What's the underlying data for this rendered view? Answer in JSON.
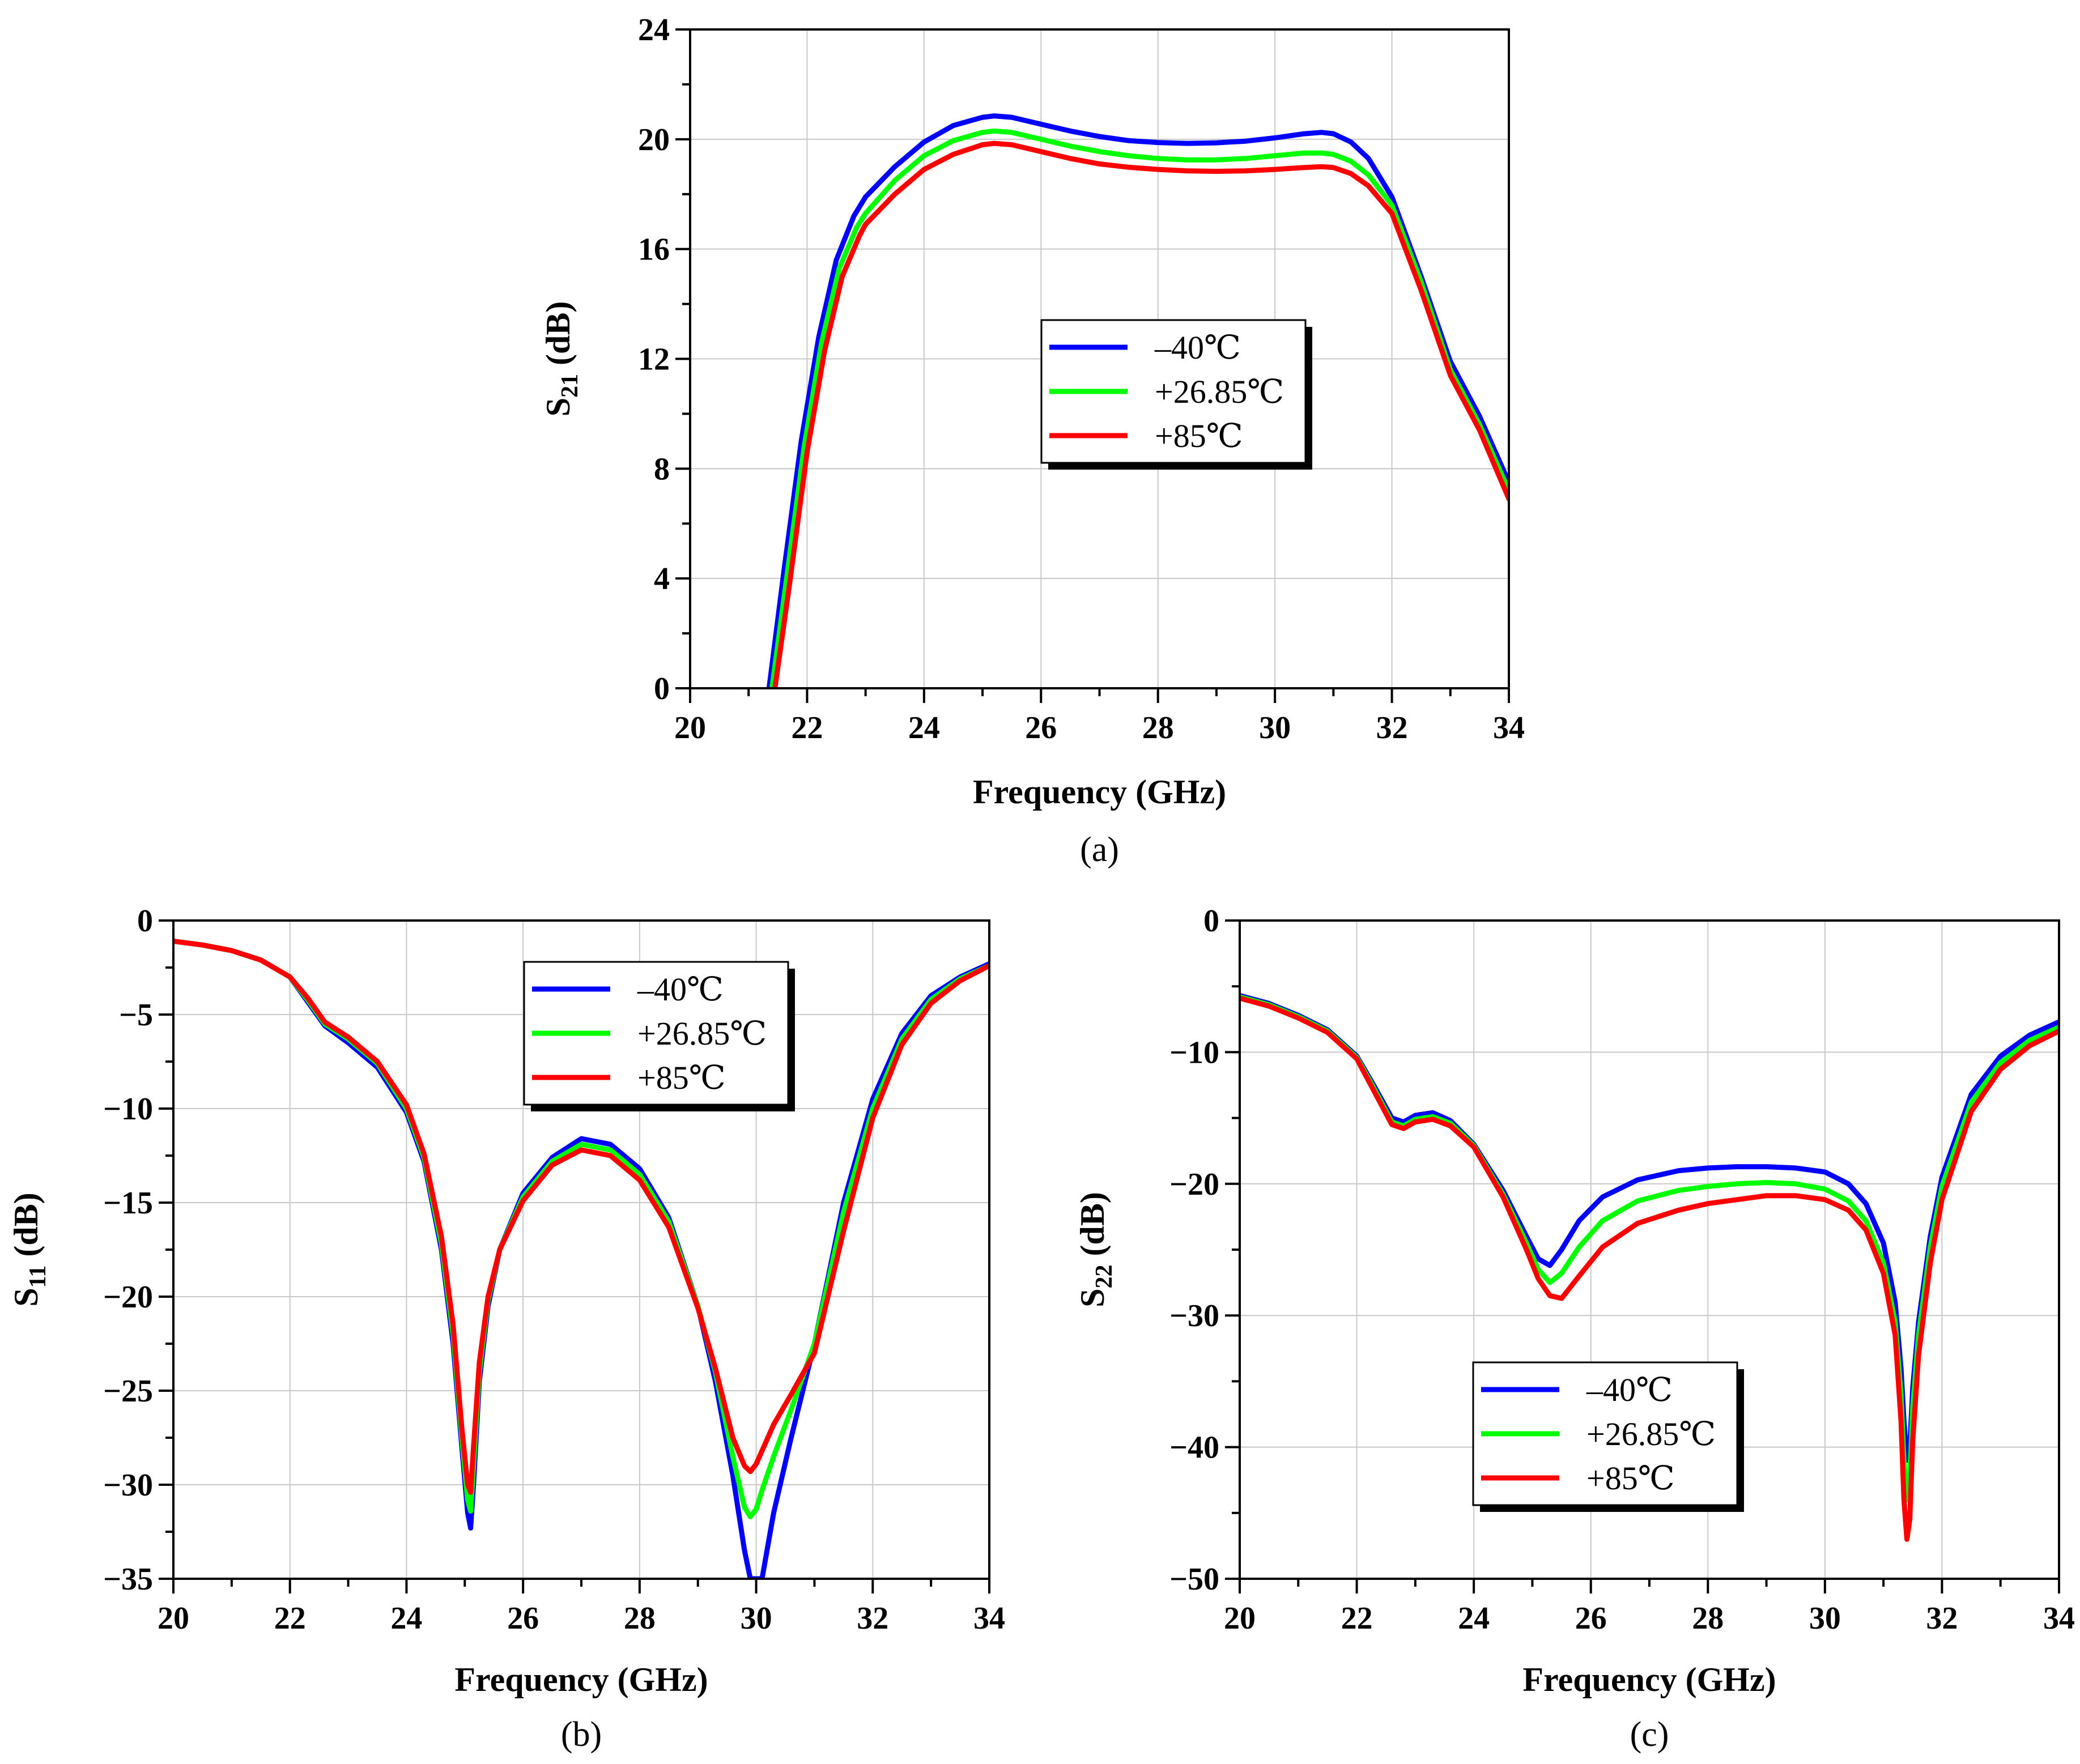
{
  "chart_data": [
    {
      "id": "a",
      "type": "line",
      "panel_label": "(a)",
      "xlabel": "Frequency (GHz)",
      "ylabel_main": "S",
      "ylabel_sub": "21",
      "ylabel_unit": " (dB)",
      "xlim": [
        20,
        34
      ],
      "ylim": [
        0,
        24
      ],
      "xticks": [
        20,
        22,
        24,
        26,
        28,
        30,
        32,
        34
      ],
      "yticks": [
        0,
        4,
        8,
        12,
        16,
        20,
        24
      ],
      "xtick_labels": [
        "20",
        "22",
        "24",
        "26",
        "28",
        "30",
        "32",
        "34"
      ],
      "ytick_labels": [
        "0",
        "4",
        "8",
        "12",
        "16",
        "20",
        "24"
      ],
      "legend_position": "center-right",
      "series": [
        {
          "name": "–40℃",
          "color": "#0000ff",
          "x": [
            21.35,
            21.6,
            21.9,
            22.2,
            22.5,
            22.8,
            23.0,
            23.5,
            24.0,
            24.5,
            25.0,
            25.2,
            25.5,
            26.0,
            26.5,
            27.0,
            27.5,
            28.0,
            28.5,
            29.0,
            29.5,
            30.0,
            30.5,
            30.8,
            31.0,
            31.3,
            31.6,
            32.0,
            32.5,
            33.0,
            33.5,
            34.0
          ],
          "y": [
            0,
            4.2,
            9.0,
            12.8,
            15.6,
            17.2,
            17.9,
            19.0,
            19.9,
            20.5,
            20.8,
            20.85,
            20.8,
            20.55,
            20.3,
            20.1,
            19.95,
            19.88,
            19.85,
            19.87,
            19.93,
            20.05,
            20.2,
            20.25,
            20.2,
            19.9,
            19.3,
            17.9,
            15.0,
            11.9,
            9.9,
            7.5
          ]
        },
        {
          "name": "+26.85℃",
          "color": "#00ff00",
          "x": [
            21.4,
            21.65,
            21.95,
            22.25,
            22.55,
            22.85,
            23.0,
            23.5,
            24.0,
            24.5,
            25.0,
            25.2,
            25.5,
            26.0,
            26.5,
            27.0,
            27.5,
            28.0,
            28.5,
            29.0,
            29.5,
            30.0,
            30.5,
            30.8,
            31.0,
            31.3,
            31.6,
            32.0,
            32.5,
            33.0,
            33.5,
            34.0
          ],
          "y": [
            0,
            4.0,
            8.8,
            12.6,
            15.3,
            16.8,
            17.3,
            18.5,
            19.4,
            19.95,
            20.25,
            20.3,
            20.25,
            20.0,
            19.75,
            19.55,
            19.4,
            19.3,
            19.25,
            19.25,
            19.3,
            19.4,
            19.5,
            19.5,
            19.45,
            19.2,
            18.7,
            17.6,
            14.8,
            11.6,
            9.6,
            7.2
          ]
        },
        {
          "name": "+85℃",
          "color": "#ff0000",
          "x": [
            21.45,
            21.7,
            22.0,
            22.3,
            22.6,
            22.9,
            23.0,
            23.5,
            24.0,
            24.5,
            25.0,
            25.2,
            25.5,
            26.0,
            26.5,
            27.0,
            27.5,
            28.0,
            28.5,
            29.0,
            29.5,
            30.0,
            30.5,
            30.8,
            31.0,
            31.3,
            31.6,
            32.0,
            32.5,
            33.0,
            33.5,
            34.0
          ],
          "y": [
            0,
            3.8,
            8.6,
            12.3,
            15.0,
            16.5,
            16.9,
            18.0,
            18.9,
            19.45,
            19.8,
            19.85,
            19.8,
            19.55,
            19.3,
            19.1,
            18.98,
            18.9,
            18.85,
            18.83,
            18.85,
            18.9,
            18.97,
            19.0,
            18.97,
            18.75,
            18.3,
            17.3,
            14.5,
            11.4,
            9.4,
            6.9
          ]
        }
      ]
    },
    {
      "id": "b",
      "type": "line",
      "panel_label": "(b)",
      "xlabel": "Frequency (GHz)",
      "ylabel_main": "S",
      "ylabel_sub": "11",
      "ylabel_unit": " (dB)",
      "xlim": [
        20,
        34
      ],
      "ylim": [
        -35,
        0
      ],
      "xticks": [
        20,
        22,
        24,
        26,
        28,
        30,
        32,
        34
      ],
      "yticks": [
        0,
        -5,
        -10,
        -15,
        -20,
        -25,
        -30,
        -35
      ],
      "xtick_labels": [
        "20",
        "22",
        "24",
        "26",
        "28",
        "30",
        "32",
        "34"
      ],
      "ytick_labels": [
        "0",
        "−5",
        "−10",
        "−15",
        "−20",
        "−25",
        "−30",
        "−35"
      ],
      "legend_position": "top-center",
      "series": [
        {
          "name": "–40℃",
          "color": "#0000ff",
          "x": [
            20.0,
            20.5,
            21.0,
            21.5,
            22.0,
            22.3,
            22.6,
            23.0,
            23.5,
            24.0,
            24.3,
            24.6,
            24.8,
            24.95,
            25.05,
            25.1,
            25.15,
            25.25,
            25.4,
            25.6,
            26.0,
            26.5,
            27.0,
            27.5,
            28.0,
            28.5,
            29.0,
            29.3,
            29.6,
            29.8,
            29.9,
            30.0,
            30.1,
            30.3,
            30.6,
            31.0,
            31.5,
            32.0,
            32.5,
            33.0,
            33.5,
            34.0
          ],
          "y": [
            -1.1,
            -1.3,
            -1.6,
            -2.1,
            -3.0,
            -4.3,
            -5.6,
            -6.5,
            -7.8,
            -10.2,
            -12.8,
            -17.5,
            -22.5,
            -28.0,
            -31.5,
            -32.3,
            -30.0,
            -24.5,
            -20.5,
            -17.5,
            -14.5,
            -12.6,
            -11.6,
            -11.9,
            -13.2,
            -15.8,
            -20.5,
            -24.5,
            -29.5,
            -33.5,
            -35.0,
            -35.0,
            -35.0,
            -31.5,
            -27.5,
            -22.5,
            -15.0,
            -9.5,
            -6.0,
            -4.0,
            -3.0,
            -2.3
          ]
        },
        {
          "name": "+26.85℃",
          "color": "#00ff00",
          "x": [
            20.0,
            20.5,
            21.0,
            21.5,
            22.0,
            22.3,
            22.6,
            23.0,
            23.5,
            24.0,
            24.3,
            24.6,
            24.8,
            24.95,
            25.05,
            25.1,
            25.15,
            25.25,
            25.4,
            25.6,
            26.0,
            26.5,
            27.0,
            27.5,
            28.0,
            28.5,
            29.0,
            29.3,
            29.6,
            29.8,
            29.9,
            30.0,
            30.1,
            30.3,
            30.6,
            31.0,
            31.5,
            32.0,
            32.5,
            33.0,
            33.5,
            34.0
          ],
          "y": [
            -1.1,
            -1.3,
            -1.6,
            -2.1,
            -3.0,
            -4.2,
            -5.5,
            -6.3,
            -7.6,
            -10.0,
            -12.6,
            -17.2,
            -22.0,
            -27.5,
            -30.8,
            -31.4,
            -29.0,
            -24.0,
            -20.2,
            -17.5,
            -14.7,
            -12.8,
            -11.9,
            -12.2,
            -13.5,
            -16.0,
            -20.5,
            -24.0,
            -28.5,
            -31.2,
            -31.7,
            -31.3,
            -30.3,
            -28.5,
            -26.0,
            -22.5,
            -15.5,
            -10.0,
            -6.3,
            -4.2,
            -3.1,
            -2.4
          ]
        },
        {
          "name": "+85℃",
          "color": "#ff0000",
          "x": [
            20.0,
            20.5,
            21.0,
            21.5,
            22.0,
            22.3,
            22.6,
            23.0,
            23.5,
            24.0,
            24.3,
            24.6,
            24.8,
            24.95,
            25.05,
            25.1,
            25.15,
            25.25,
            25.4,
            25.6,
            26.0,
            26.5,
            27.0,
            27.5,
            28.0,
            28.5,
            29.0,
            29.3,
            29.6,
            29.8,
            29.9,
            30.0,
            30.1,
            30.3,
            30.6,
            31.0,
            31.5,
            32.0,
            32.5,
            33.0,
            33.5,
            34.0
          ],
          "y": [
            -1.1,
            -1.3,
            -1.6,
            -2.1,
            -3.0,
            -4.1,
            -5.4,
            -6.2,
            -7.5,
            -9.8,
            -12.4,
            -16.8,
            -21.5,
            -27.0,
            -30.0,
            -30.4,
            -28.0,
            -23.5,
            -20.0,
            -17.5,
            -14.9,
            -13.0,
            -12.2,
            -12.5,
            -13.8,
            -16.3,
            -20.6,
            -23.8,
            -27.5,
            -29.0,
            -29.3,
            -28.9,
            -28.2,
            -26.8,
            -25.2,
            -23.0,
            -16.5,
            -10.5,
            -6.6,
            -4.4,
            -3.2,
            -2.4
          ]
        }
      ]
    },
    {
      "id": "c",
      "type": "line",
      "panel_label": "(c)",
      "xlabel": "Frequency (GHz)",
      "ylabel_main": "S",
      "ylabel_sub": "22",
      "ylabel_unit": " (dB)",
      "xlim": [
        20,
        34
      ],
      "ylim": [
        -50,
        0
      ],
      "xticks": [
        20,
        22,
        24,
        26,
        28,
        30,
        32,
        34
      ],
      "yticks": [
        0,
        -10,
        -20,
        -30,
        -40,
        -50
      ],
      "xtick_labels": [
        "20",
        "22",
        "24",
        "26",
        "28",
        "30",
        "32",
        "34"
      ],
      "ytick_labels": [
        "0",
        "−10",
        "−20",
        "−30",
        "−40",
        "−50"
      ],
      "legend_position": "bottom-center",
      "series": [
        {
          "name": "–40℃",
          "color": "#0000ff",
          "x": [
            20.0,
            20.5,
            21.0,
            21.5,
            22.0,
            22.3,
            22.6,
            22.8,
            23.0,
            23.3,
            23.6,
            24.0,
            24.5,
            24.9,
            25.1,
            25.3,
            25.5,
            25.8,
            26.2,
            26.8,
            27.5,
            28.0,
            28.5,
            29.0,
            29.5,
            30.0,
            30.4,
            30.7,
            31.0,
            31.2,
            31.3,
            31.35,
            31.4,
            31.45,
            31.5,
            31.6,
            31.8,
            32.0,
            32.5,
            33.0,
            33.5,
            34.0
          ],
          "y": [
            -5.7,
            -6.3,
            -7.2,
            -8.3,
            -10.3,
            -12.6,
            -15.0,
            -15.3,
            -14.8,
            -14.6,
            -15.2,
            -17.0,
            -20.5,
            -24.0,
            -25.7,
            -26.2,
            -25.0,
            -22.8,
            -21.0,
            -19.7,
            -19.0,
            -18.8,
            -18.7,
            -18.7,
            -18.8,
            -19.1,
            -20.0,
            -21.5,
            -24.5,
            -29.0,
            -34.0,
            -38.0,
            -41.0,
            -40.0,
            -35.5,
            -30.5,
            -24.0,
            -19.5,
            -13.2,
            -10.3,
            -8.7,
            -7.7
          ]
        },
        {
          "name": "+26.85℃",
          "color": "#00ff00",
          "x": [
            20.0,
            20.5,
            21.0,
            21.5,
            22.0,
            22.3,
            22.6,
            22.8,
            23.0,
            23.3,
            23.6,
            24.0,
            24.5,
            24.9,
            25.1,
            25.3,
            25.5,
            25.8,
            26.2,
            26.8,
            27.5,
            28.0,
            28.5,
            29.0,
            29.5,
            30.0,
            30.4,
            30.7,
            31.0,
            31.2,
            31.3,
            31.35,
            31.4,
            31.45,
            31.5,
            31.6,
            31.8,
            32.0,
            32.5,
            33.0,
            33.5,
            34.0
          ],
          "y": [
            -5.8,
            -6.4,
            -7.3,
            -8.4,
            -10.4,
            -12.8,
            -15.3,
            -15.6,
            -15.1,
            -14.9,
            -15.4,
            -17.1,
            -20.8,
            -24.5,
            -26.5,
            -27.5,
            -26.8,
            -24.8,
            -22.8,
            -21.3,
            -20.5,
            -20.2,
            -20.0,
            -19.9,
            -20.0,
            -20.4,
            -21.3,
            -22.8,
            -26.0,
            -30.5,
            -36.0,
            -41.0,
            -44.0,
            -42.5,
            -37.0,
            -31.5,
            -24.8,
            -20.2,
            -13.8,
            -10.8,
            -9.1,
            -8.1
          ]
        },
        {
          "name": "+85℃",
          "color": "#ff0000",
          "x": [
            20.0,
            20.5,
            21.0,
            21.5,
            22.0,
            22.3,
            22.6,
            22.8,
            23.0,
            23.3,
            23.6,
            24.0,
            24.5,
            24.9,
            25.1,
            25.3,
            25.5,
            25.8,
            26.2,
            26.8,
            27.5,
            28.0,
            28.5,
            29.0,
            29.5,
            30.0,
            30.4,
            30.7,
            31.0,
            31.2,
            31.3,
            31.35,
            31.4,
            31.45,
            31.5,
            31.6,
            31.8,
            32.0,
            32.5,
            33.0,
            33.5,
            34.0
          ],
          "y": [
            -5.9,
            -6.5,
            -7.4,
            -8.5,
            -10.5,
            -13.0,
            -15.5,
            -15.8,
            -15.3,
            -15.1,
            -15.6,
            -17.2,
            -21.0,
            -25.0,
            -27.2,
            -28.5,
            -28.7,
            -27.0,
            -24.8,
            -23.0,
            -22.0,
            -21.5,
            -21.2,
            -20.9,
            -20.9,
            -21.2,
            -22.0,
            -23.5,
            -26.8,
            -31.5,
            -38.0,
            -44.0,
            -47.0,
            -45.5,
            -39.5,
            -33.0,
            -26.0,
            -21.2,
            -14.5,
            -11.3,
            -9.5,
            -8.4
          ]
        }
      ]
    }
  ]
}
